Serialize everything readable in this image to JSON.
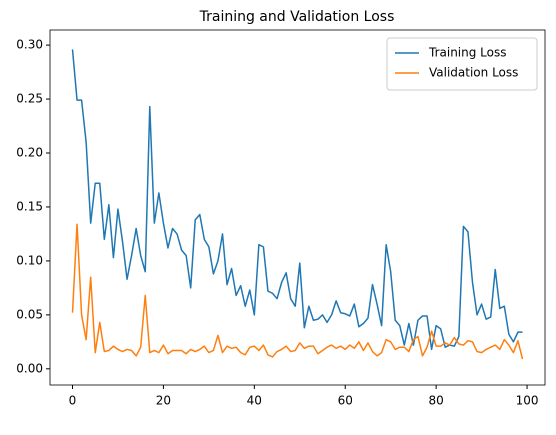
{
  "chart_data": {
    "type": "line",
    "title": "Training and Validation Loss",
    "x": [
      0,
      1,
      2,
      3,
      4,
      5,
      6,
      7,
      8,
      9,
      10,
      11,
      12,
      13,
      14,
      15,
      16,
      17,
      18,
      19,
      20,
      21,
      22,
      23,
      24,
      25,
      26,
      27,
      28,
      29,
      30,
      31,
      32,
      33,
      34,
      35,
      36,
      37,
      38,
      39,
      40,
      41,
      42,
      43,
      44,
      45,
      46,
      47,
      48,
      49,
      50,
      51,
      52,
      53,
      54,
      55,
      56,
      57,
      58,
      59,
      60,
      61,
      62,
      63,
      64,
      65,
      66,
      67,
      68,
      69,
      70,
      71,
      72,
      73,
      74,
      75,
      76,
      77,
      78,
      79,
      80,
      81,
      82,
      83,
      84,
      85,
      86,
      87,
      88,
      89,
      90,
      91,
      92,
      93,
      94,
      95,
      96,
      97,
      98,
      99
    ],
    "series": [
      {
        "name": "Training Loss",
        "color": "#1f77b4",
        "values": [
          0.296,
          0.249,
          0.249,
          0.21,
          0.135,
          0.172,
          0.172,
          0.12,
          0.152,
          0.103,
          0.148,
          0.118,
          0.083,
          0.105,
          0.13,
          0.105,
          0.09,
          0.243,
          0.135,
          0.163,
          0.135,
          0.112,
          0.13,
          0.125,
          0.11,
          0.105,
          0.075,
          0.138,
          0.143,
          0.12,
          0.113,
          0.088,
          0.1,
          0.125,
          0.078,
          0.093,
          0.068,
          0.077,
          0.058,
          0.073,
          0.05,
          0.115,
          0.113,
          0.072,
          0.07,
          0.065,
          0.08,
          0.089,
          0.065,
          0.058,
          0.098,
          0.038,
          0.058,
          0.045,
          0.046,
          0.05,
          0.043,
          0.05,
          0.063,
          0.052,
          0.051,
          0.049,
          0.06,
          0.039,
          0.042,
          0.047,
          0.078,
          0.06,
          0.04,
          0.115,
          0.09,
          0.045,
          0.04,
          0.022,
          0.042,
          0.022,
          0.045,
          0.049,
          0.049,
          0.018,
          0.04,
          0.037,
          0.02,
          0.022,
          0.021,
          0.03,
          0.132,
          0.127,
          0.08,
          0.05,
          0.06,
          0.046,
          0.048,
          0.092,
          0.056,
          0.058,
          0.032,
          0.025,
          0.034,
          0.034
        ]
      },
      {
        "name": "Validation Loss",
        "color": "#ff7f0e",
        "values": [
          0.052,
          0.134,
          0.05,
          0.027,
          0.085,
          0.015,
          0.043,
          0.016,
          0.017,
          0.021,
          0.018,
          0.016,
          0.018,
          0.017,
          0.012,
          0.02,
          0.068,
          0.015,
          0.017,
          0.015,
          0.022,
          0.014,
          0.017,
          0.017,
          0.017,
          0.014,
          0.018,
          0.016,
          0.018,
          0.021,
          0.015,
          0.017,
          0.031,
          0.015,
          0.021,
          0.019,
          0.02,
          0.015,
          0.013,
          0.02,
          0.021,
          0.017,
          0.022,
          0.013,
          0.011,
          0.016,
          0.018,
          0.021,
          0.016,
          0.017,
          0.024,
          0.019,
          0.021,
          0.021,
          0.014,
          0.017,
          0.02,
          0.022,
          0.019,
          0.021,
          0.018,
          0.022,
          0.019,
          0.025,
          0.017,
          0.024,
          0.016,
          0.012,
          0.015,
          0.027,
          0.025,
          0.018,
          0.02,
          0.02,
          0.016,
          0.027,
          0.03,
          0.012,
          0.02,
          0.035,
          0.021,
          0.021,
          0.024,
          0.022,
          0.029,
          0.023,
          0.022,
          0.026,
          0.025,
          0.016,
          0.015,
          0.018,
          0.02,
          0.022,
          0.018,
          0.027,
          0.022,
          0.015,
          0.026,
          0.009
        ]
      }
    ],
    "xlim": [
      -4.95,
      103.95
    ],
    "ylim": [
      -0.015,
      0.314
    ],
    "xticks": [
      0,
      20,
      40,
      60,
      80,
      100
    ],
    "yticks": [
      {
        "value": 0,
        "label": "0.00"
      },
      {
        "value": 0.05,
        "label": "0.05"
      },
      {
        "value": 0.1,
        "label": "0.10"
      },
      {
        "value": 0.15,
        "label": "0.15"
      },
      {
        "value": 0.2,
        "label": "0.20"
      },
      {
        "value": 0.25,
        "label": "0.25"
      },
      {
        "value": 0.3,
        "label": "0.30"
      }
    ],
    "legend": "upper right",
    "grid": false
  }
}
